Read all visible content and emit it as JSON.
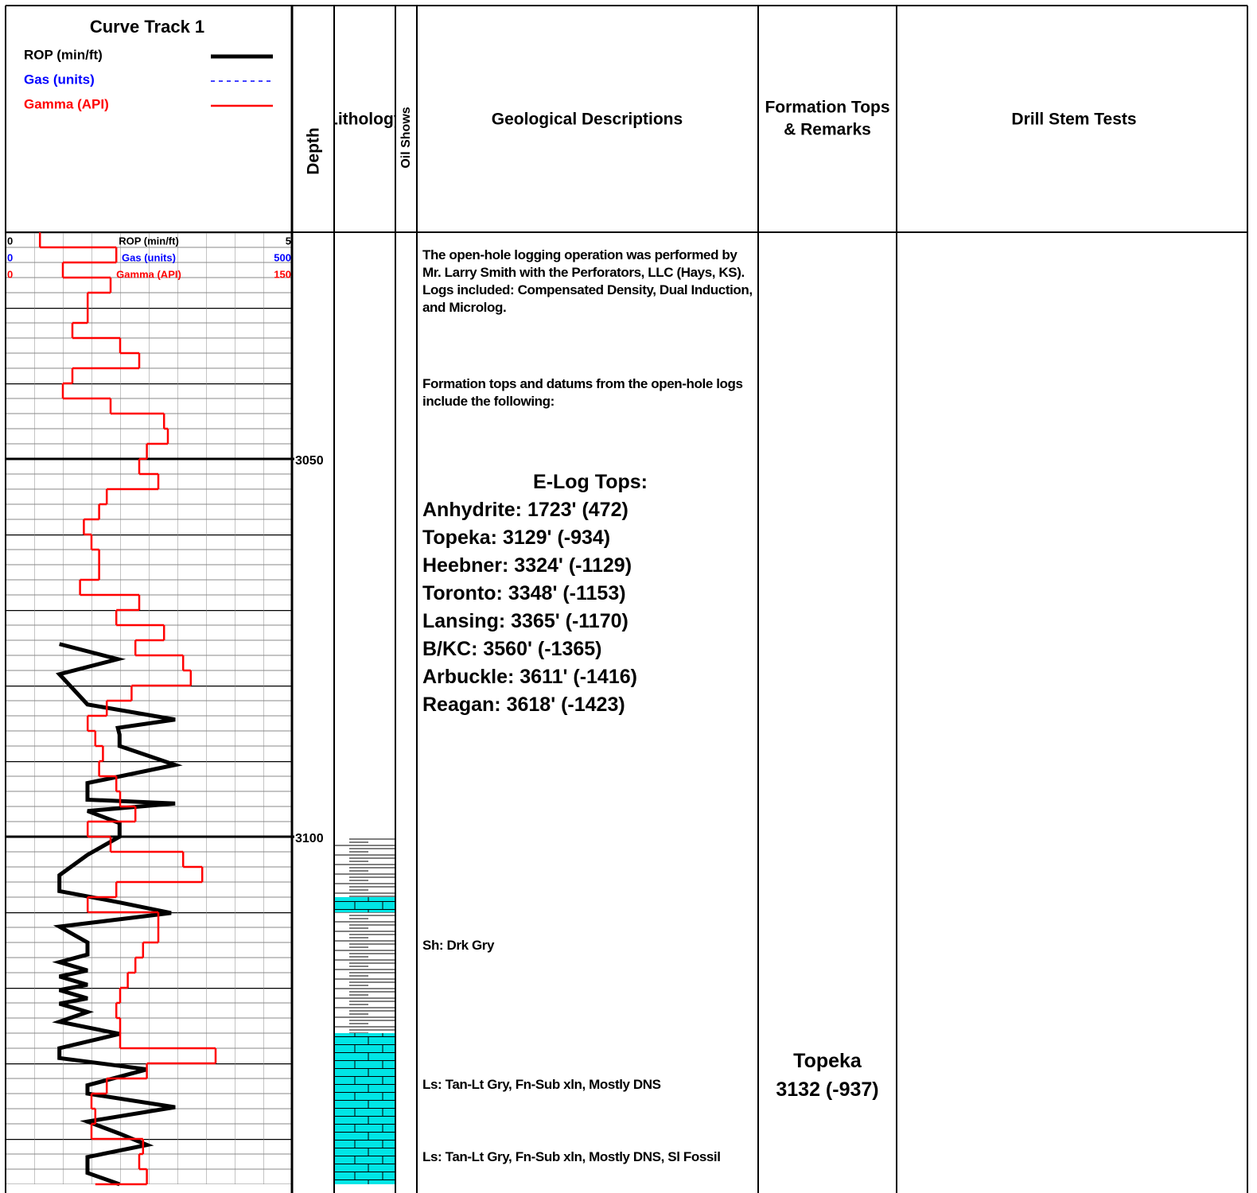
{
  "header": {
    "track_title": "Curve Track 1",
    "columns": {
      "depth": "Depth",
      "lithology": "Lithology",
      "oil_shows": "Oil Shows",
      "descriptions": "Geological Descriptions",
      "formation_tops": [
        "Formation Tops",
        "& Remarks"
      ],
      "drill_stem_tests": "Drill Stem Tests"
    }
  },
  "chart_data": {
    "type": "well-log",
    "ylim": [
      3020,
      3146
    ],
    "yticks": [
      3050,
      3100
    ],
    "curves": [
      {
        "name": "ROP (min/ft)",
        "color": "#000000",
        "xlim": [
          0,
          5
        ],
        "depth": [
          3074.5,
          3076.5,
          3078.5,
          3082.5,
          3084.5,
          3085.6,
          3086.5,
          3088,
          3090.5,
          3092.9,
          3095.1,
          3095.6,
          3096.6,
          3098.2,
          3100,
          3102.4,
          3105.1,
          3107.2,
          3108.7,
          3110.1,
          3111.9,
          3114,
          3115.6,
          3116.6,
          3117.7,
          3118.5,
          3119.6,
          3120.3,
          3121.4,
          3122.1,
          3123.2,
          3124.5,
          3126.1,
          3128,
          3129.3,
          3130.8,
          3132.9,
          3134,
          3135.8,
          3137.7,
          3139.3,
          3140.8,
          3142.4,
          3144.5,
          3146
        ],
        "values": [
          0.94,
          1.96,
          0.94,
          1.43,
          2.96,
          1.96,
          1.99,
          1.99,
          2.96,
          1.43,
          1.43,
          2.96,
          1.43,
          1.99,
          1.99,
          1.43,
          0.94,
          0.94,
          1.99,
          2.89,
          0.94,
          1.43,
          1.43,
          0.94,
          1.43,
          0.94,
          1.43,
          0.94,
          1.43,
          0.94,
          1.43,
          0.94,
          1.99,
          0.94,
          0.94,
          2.47,
          1.43,
          1.43,
          2.96,
          1.43,
          1.99,
          2.47,
          1.43,
          1.43,
          1.99
        ]
      },
      {
        "name": "Gas (units)",
        "color": "#0000ff",
        "xlim": [
          0,
          500
        ],
        "dashed": true
      },
      {
        "name": "Gamma (API)",
        "color": "#ff0000",
        "xlim": [
          0,
          150
        ],
        "step": true,
        "depth": [
          3020,
          3022,
          3024,
          3026,
          3028,
          3030,
          3032,
          3034,
          3036,
          3038,
          3040,
          3042,
          3044,
          3046,
          3048,
          3050,
          3052,
          3054,
          3056,
          3058,
          3060,
          3062,
          3064,
          3066,
          3068,
          3070,
          3072,
          3074,
          3076,
          3078,
          3080,
          3082,
          3084,
          3086,
          3088,
          3090,
          3092,
          3094,
          3096,
          3098,
          3100,
          3102,
          3104,
          3106,
          3108,
          3110,
          3112,
          3114,
          3116,
          3118,
          3120,
          3122,
          3124,
          3126,
          3128,
          3130,
          3132,
          3134,
          3136,
          3138,
          3140,
          3142,
          3144,
          3146
        ],
        "values": [
          18,
          58,
          30,
          55,
          43,
          43,
          35,
          60,
          70,
          35,
          30,
          55,
          83,
          85,
          74,
          70,
          80,
          53,
          49,
          41,
          45,
          49,
          49,
          39,
          70,
          58,
          83,
          68,
          93,
          97,
          66,
          53,
          43,
          47,
          51,
          49,
          58,
          60,
          68,
          43,
          55,
          93,
          103,
          58,
          43,
          80,
          80,
          72,
          68,
          64,
          60,
          58,
          60,
          60,
          110,
          74,
          53,
          45,
          47,
          45,
          72,
          70,
          74,
          47
        ]
      }
    ],
    "lithology": [
      {
        "top": 3100,
        "bottom": 3108,
        "fill": "#ffffff"
      },
      {
        "top": 3108,
        "bottom": 3110,
        "fill": "#00e5e5"
      },
      {
        "top": 3110,
        "bottom": 3126,
        "fill": "#ffffff"
      },
      {
        "top": 3126,
        "bottom": 3146,
        "fill": "#00e5e5"
      }
    ]
  },
  "descriptions": {
    "intro": [
      "The open-hole logging operation was performed by Mr. Larry Smith with the Perforators, LLC (Hays, KS). Logs included: Compensated Density, Dual Induction, and Microlog.",
      "Formation tops and datums from the open-hole logs include the following:"
    ],
    "elog_title": "E-Log Tops:",
    "elog_tops": [
      "Anhydrite: 1723' (472)",
      "Topeka: 3129' (-934)",
      "Heebner: 3324' (-1129)",
      "Toronto: 3348' (-1153)",
      "Lansing: 3365' (-1170)",
      "B/KC: 3560' (-1365)",
      "Arbuckle: 3611' (-1416)",
      "Reagan: 3618' (-1423)"
    ],
    "samples": [
      "Sh: Drk Gry",
      "Ls: Tan-Lt Gry, Fn-Sub xln, Mostly DNS",
      "Ls: Tan-Lt Gry, Fn-Sub xln, Mostly DNS, Sl Fossil"
    ]
  },
  "formation_tops": [
    {
      "name": "Topeka",
      "value": "3132 (-937)"
    }
  ]
}
